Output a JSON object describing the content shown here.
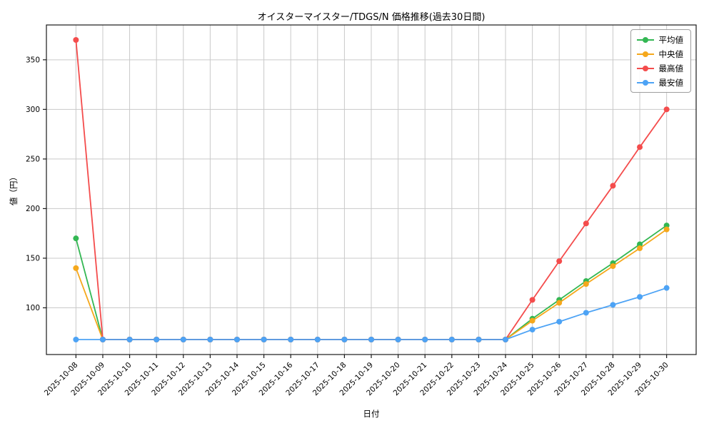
{
  "chart_data": {
    "type": "line",
    "title": "オイスターマイスター/TDGS/N 価格推移(過去30日間)",
    "xlabel": "日付",
    "ylabel": "値（円）",
    "grid": true,
    "legend_position": "top-right",
    "ylim": [
      52.9,
      385.1
    ],
    "yticks": [
      100,
      150,
      200,
      250,
      300,
      350
    ],
    "xtick_rotation": 45,
    "categories": [
      "2025-10-08",
      "2025-10-09",
      "2025-10-10",
      "2025-10-11",
      "2025-10-12",
      "2025-10-13",
      "2025-10-14",
      "2025-10-15",
      "2025-10-16",
      "2025-10-17",
      "2025-10-18",
      "2025-10-19",
      "2025-10-20",
      "2025-10-21",
      "2025-10-22",
      "2025-10-23",
      "2025-10-24",
      "2025-10-25",
      "2025-10-26",
      "2025-10-27",
      "2025-10-28",
      "2025-10-29",
      "2025-10-30"
    ],
    "series": [
      {
        "name": "平均値",
        "color": "#33b753",
        "values": [
          170,
          68,
          68,
          68,
          68,
          68,
          68,
          68,
          68,
          68,
          68,
          68,
          68,
          68,
          68,
          68,
          68,
          89,
          108,
          127,
          145,
          164,
          183
        ]
      },
      {
        "name": "中央値",
        "color": "#f5a81c",
        "values": [
          140,
          68,
          68,
          68,
          68,
          68,
          68,
          68,
          68,
          68,
          68,
          68,
          68,
          68,
          68,
          68,
          68,
          87,
          105,
          124,
          142,
          160,
          179
        ]
      },
      {
        "name": "最高値",
        "color": "#f44c4c",
        "values": [
          370,
          68,
          68,
          68,
          68,
          68,
          68,
          68,
          68,
          68,
          68,
          68,
          68,
          68,
          68,
          68,
          68,
          108,
          147,
          185,
          223,
          262,
          300
        ]
      },
      {
        "name": "最安値",
        "color": "#4da3f5",
        "values": [
          68,
          68,
          68,
          68,
          68,
          68,
          68,
          68,
          68,
          68,
          68,
          68,
          68,
          68,
          68,
          68,
          68,
          78,
          86,
          95,
          103,
          111,
          120
        ]
      }
    ],
    "colors": {
      "grid": "#c9c9c9",
      "spine": "#1a1a1a",
      "tick_text": "#000000"
    }
  }
}
